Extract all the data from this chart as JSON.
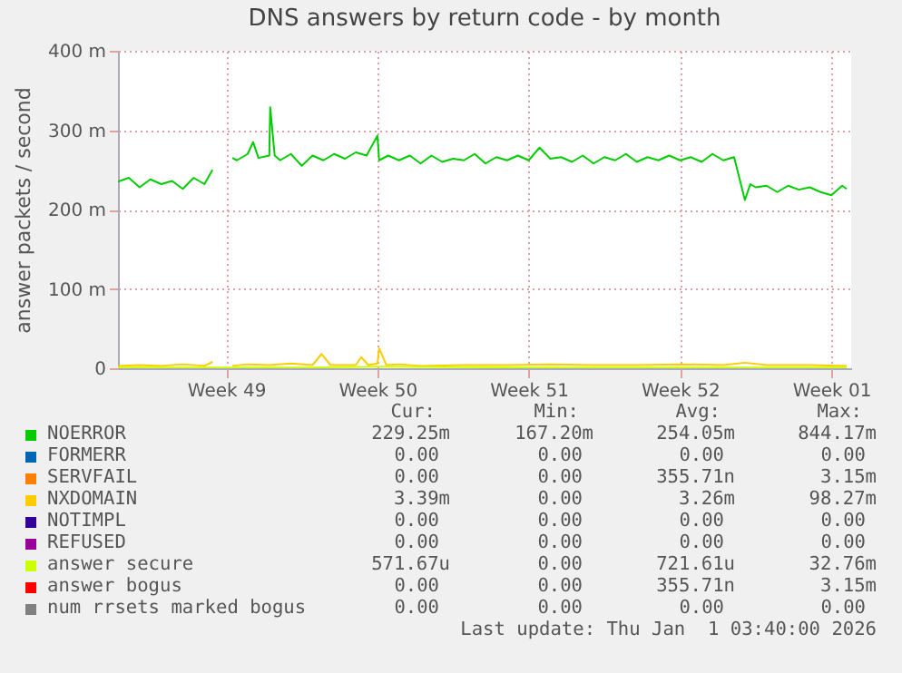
{
  "chart_data": {
    "type": "line",
    "title": "DNS answers by return code - by month",
    "ylabel": "answer packets / second",
    "xlim": [
      "--11-26",
      "--12-29T22:00"
    ],
    "xticks": [
      {
        "value": "--12-01",
        "label": "Week 49"
      },
      {
        "value": "--12-08",
        "label": "Week 50"
      },
      {
        "value": "--12-15",
        "label": "Week 51"
      },
      {
        "value": "--12-22",
        "label": "Week 52"
      },
      {
        "value": "--12-29",
        "label": "Week 01"
      }
    ],
    "ylim": [
      0,
      400
    ],
    "yticks": [
      0,
      {
        "value": 100,
        "label": "100 m"
      },
      {
        "value": 200,
        "label": "200 m"
      },
      {
        "value": 300,
        "label": "300 m"
      },
      {
        "value": 400,
        "label": "400 m"
      }
    ],
    "grid": true,
    "legend": "bottom",
    "series": [
      {
        "name": "NOERROR",
        "color": "#00cc00",
        "x": [
          "--11-26",
          "--11-26T12:00",
          "--11-27",
          "--11-27T12:00",
          "--11-28",
          "--11-28T12:00",
          "--11-29",
          "--11-29T12:00",
          "--11-30",
          "--11-30T09:00",
          "--12-01",
          "--12-01T07:00",
          "--12-01T12:00",
          "--12-02",
          "--12-02T06:00",
          "--12-02T12:00",
          "--12-03",
          "--12-03T01:00",
          "--12-03T06:00",
          "--12-03T12:00",
          "--12-04",
          "--12-04T12:00",
          "--12-05",
          "--12-05T12:00",
          "--12-06",
          "--12-06T12:00",
          "--12-07",
          "--12-07T12:00",
          "--12-08",
          "--12-08T02:00",
          "--12-08T12:00",
          "--12-09",
          "--12-09T12:00",
          "--12-10",
          "--12-10T12:00",
          "--12-11",
          "--12-11T12:00",
          "--12-12",
          "--12-12T12:00",
          "--12-13",
          "--12-13T12:00",
          "--12-14",
          "--12-14T12:00",
          "--12-15",
          "--12-15T12:00",
          "--12-16",
          "--12-16T12:00",
          "--12-17",
          "--12-17T12:00",
          "--12-18",
          "--12-18T12:00",
          "--12-19",
          "--12-19T12:00",
          "--12-20",
          "--12-20T12:00",
          "--12-21",
          "--12-21T12:00",
          "--12-22",
          "--12-22T12:00",
          "--12-23",
          "--12-23T12:00",
          "--12-24",
          "--12-24T12:00",
          "--12-25",
          "--12-25T06:00",
          "--12-25T12:00",
          "--12-26",
          "--12-26T12:00",
          "--12-27",
          "--12-27T12:00",
          "--12-28",
          "--12-28T12:00",
          "--12-29",
          "--12-29T12:00",
          "--12-29T17:00"
        ],
        "values": [
          235,
          240,
          228,
          238,
          232,
          236,
          226,
          240,
          232,
          250,
          null,
          265,
          262,
          270,
          285,
          265,
          268,
          329,
          268,
          262,
          270,
          255,
          268,
          262,
          270,
          264,
          272,
          268,
          293,
          262,
          268,
          262,
          268,
          258,
          268,
          260,
          264,
          262,
          270,
          258,
          266,
          262,
          268,
          262,
          278,
          264,
          266,
          260,
          268,
          258,
          266,
          262,
          270,
          260,
          266,
          262,
          268,
          262,
          266,
          260,
          270,
          262,
          266,
          212,
          232,
          228,
          230,
          222,
          230,
          225,
          228,
          222,
          218,
          230,
          226
        ]
      },
      {
        "name": "FORMERR",
        "color": "#0066b3"
      },
      {
        "name": "SERVFAIL",
        "color": "#ff8000"
      },
      {
        "name": "NXDOMAIN",
        "color": "#ffcc00",
        "x": [
          "--11-26",
          "--11-27",
          "--11-28",
          "--11-29",
          "--11-30",
          "--11-30T09:00",
          "--12-01",
          "--12-01T07:00",
          "--12-02",
          "--12-03",
          "--12-04",
          "--12-05",
          "--12-05T10:00",
          "--12-05T20:00",
          "--12-07",
          "--12-07T06:00",
          "--12-07T14:00",
          "--12-08",
          "--12-08T02:00",
          "--12-08T10:00",
          "--12-09",
          "--12-10",
          "--12-12",
          "--12-14",
          "--12-16",
          "--12-18",
          "--12-20",
          "--12-22",
          "--12-24",
          "--12-25",
          "--12-26",
          "--12-28",
          "--12-29T17:00"
        ],
        "values": [
          3,
          4,
          3,
          5,
          3,
          8,
          null,
          3,
          5,
          4,
          6,
          4,
          18,
          4,
          4,
          14,
          4,
          6,
          25,
          4,
          5,
          3,
          4,
          4,
          5,
          4,
          4,
          5,
          4,
          7,
          4,
          4,
          3
        ]
      },
      {
        "name": "NOTIMPL",
        "color": "#330099"
      },
      {
        "name": "REFUSED",
        "color": "#990099"
      },
      {
        "name": "answer secure",
        "color": "#ccff00",
        "x": [
          "--11-26",
          "--12-05",
          "--12-08",
          "--12-15",
          "--12-22",
          "--12-29T17:00"
        ],
        "values": [
          1,
          1,
          2,
          1,
          1,
          1
        ]
      },
      {
        "name": "answer bogus",
        "color": "#ff0000"
      },
      {
        "name": "num rrsets marked bogus",
        "color": "#808080"
      }
    ],
    "annotations": [
      "Cur:",
      "Min:",
      "Avg:",
      "Max:",
      "229.25m",
      "167.20m",
      "254.05m",
      "844.17m",
      "0.00",
      "0.00",
      "0.00",
      "0.00",
      "0.00",
      "0.00",
      "355.71n",
      "3.15m",
      "3.39m",
      "0.00",
      "3.26m",
      "98.27m",
      "0.00",
      "0.00",
      "0.00",
      "0.00",
      "0.00",
      "0.00",
      "0.00",
      "0.00",
      "571.67u",
      "0.00",
      "721.61u",
      "32.76m",
      "0.00",
      "0.00",
      "355.71n",
      "3.15m",
      "0.00",
      "0.00",
      "0.00",
      "0.00",
      "Last update: Thu Jan  1 03:40:00 2026"
    ]
  }
}
